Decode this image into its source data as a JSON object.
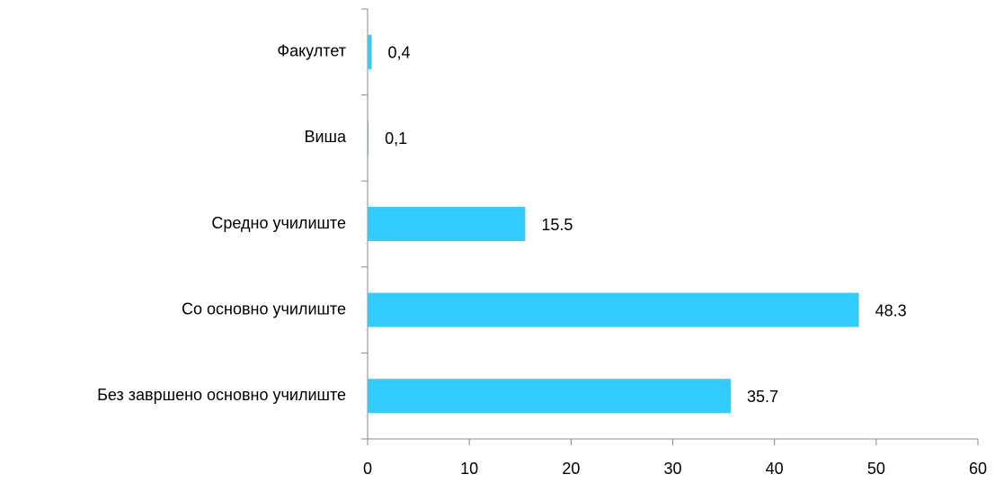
{
  "chart_data": {
    "type": "barh",
    "categories": [
      "Факултет",
      "Виша",
      "Средно училиште",
      "Со основно училиште",
      "Без завршено основно училиште"
    ],
    "values": [
      0.4,
      0.1,
      15.5,
      48.3,
      35.7
    ],
    "value_labels": [
      "0,4",
      "0,1",
      "15.5",
      "48.3",
      "35.7"
    ],
    "color": "#33ccff",
    "xlim": [
      0,
      60
    ],
    "xticks": [
      0,
      10,
      20,
      30,
      40,
      50,
      60
    ]
  }
}
